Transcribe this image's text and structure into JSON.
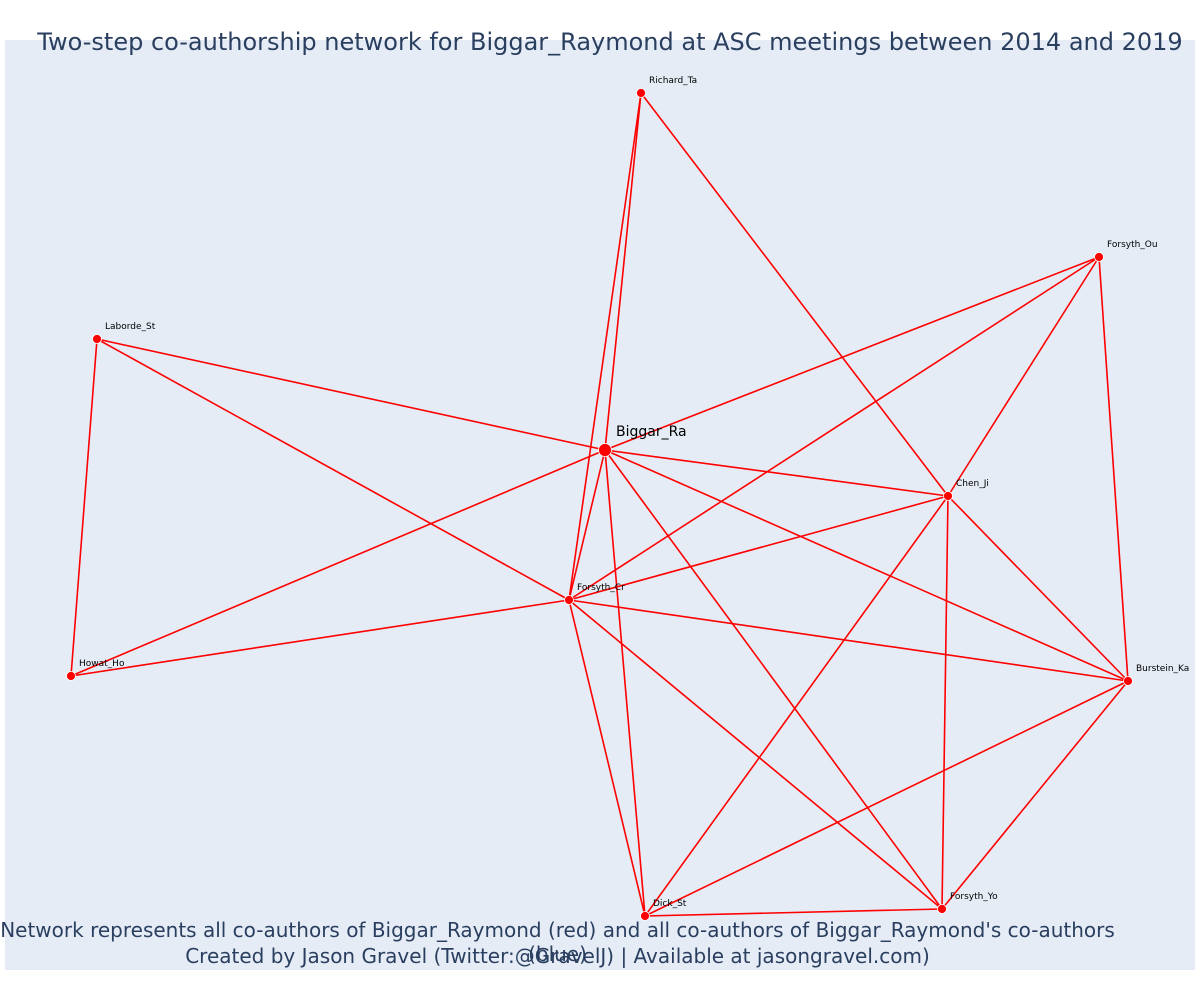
{
  "title": "Two-step co-authorship network for Biggar_Raymond at ASC meetings between 2014 and 2019",
  "caption_line1": "Network represents all co-authors of Biggar_Raymond (red) and all co-authors of Biggar_Raymond's co-authors (blue)",
  "caption_line2": "Created by Jason Gravel (Twitter:@GravelJ) | Available at jasongravel.com)",
  "colors": {
    "background": "#e5ecf6",
    "node": "#ff0000",
    "edge": "#ff0000",
    "text": "#2a3f5f"
  },
  "nodes": [
    {
      "id": "Biggar_Ra",
      "label": "Biggar_Ra",
      "focal": true
    },
    {
      "id": "Richard_Ta",
      "label": "Richard_Ta"
    },
    {
      "id": "Forsyth_Ou",
      "label": "Forsyth_Ou"
    },
    {
      "id": "Laborde_St",
      "label": "Laborde_St"
    },
    {
      "id": "Chen_Ji",
      "label": "Chen_Ji"
    },
    {
      "id": "Forsyth_Cr",
      "label": "Forsyth_Cr"
    },
    {
      "id": "Howat_Ho",
      "label": "Howat_Ho"
    },
    {
      "id": "Burstein_Ka",
      "label": "Burstein_Ka"
    },
    {
      "id": "Dick_St",
      "label": "Dick_St"
    },
    {
      "id": "Forsyth_Yo",
      "label": "Forsyth_Yo"
    }
  ],
  "edges": [
    [
      "Biggar_Ra",
      "Richard_Ta"
    ],
    [
      "Biggar_Ra",
      "Forsyth_Ou"
    ],
    [
      "Biggar_Ra",
      "Laborde_St"
    ],
    [
      "Biggar_Ra",
      "Chen_Ji"
    ],
    [
      "Biggar_Ra",
      "Forsyth_Cr"
    ],
    [
      "Biggar_Ra",
      "Howat_Ho"
    ],
    [
      "Biggar_Ra",
      "Burstein_Ka"
    ],
    [
      "Biggar_Ra",
      "Dick_St"
    ],
    [
      "Biggar_Ra",
      "Forsyth_Yo"
    ],
    [
      "Richard_Ta",
      "Forsyth_Cr"
    ],
    [
      "Richard_Ta",
      "Chen_Ji"
    ],
    [
      "Forsyth_Ou",
      "Forsyth_Cr"
    ],
    [
      "Forsyth_Ou",
      "Chen_Ji"
    ],
    [
      "Forsyth_Ou",
      "Burstein_Ka"
    ],
    [
      "Laborde_St",
      "Forsyth_Cr"
    ],
    [
      "Laborde_St",
      "Howat_Ho"
    ],
    [
      "Forsyth_Cr",
      "Howat_Ho"
    ],
    [
      "Forsyth_Cr",
      "Chen_Ji"
    ],
    [
      "Forsyth_Cr",
      "Burstein_Ka"
    ],
    [
      "Forsyth_Cr",
      "Dick_St"
    ],
    [
      "Forsyth_Cr",
      "Forsyth_Yo"
    ],
    [
      "Chen_Ji",
      "Burstein_Ka"
    ],
    [
      "Chen_Ji",
      "Dick_St"
    ],
    [
      "Chen_Ji",
      "Forsyth_Yo"
    ],
    [
      "Burstein_Ka",
      "Dick_St"
    ],
    [
      "Burstein_Ka",
      "Forsyth_Yo"
    ],
    [
      "Dick_St",
      "Forsyth_Yo"
    ]
  ]
}
